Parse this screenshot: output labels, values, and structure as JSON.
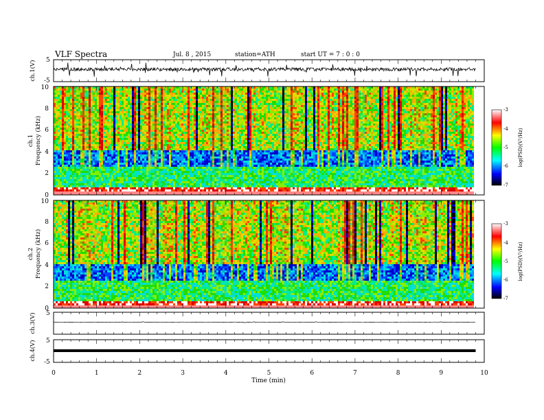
{
  "header": {
    "title": "VLF Spectra",
    "date": "Jul.  8  , 2015",
    "station": "station=ATH",
    "start": "start  UT  =   7  : 0  : 0"
  },
  "chart_data": [
    {
      "id": "ch1",
      "type": "line",
      "ylabel": "ch.1(V)",
      "ylim": [
        -5,
        5
      ],
      "yticks": [
        "5",
        "-5"
      ],
      "description_level": 0.8
    },
    {
      "id": "spec1",
      "type": "heatmap",
      "ylabel_top": "ch.1",
      "ylabel": "Frequency  (kHz)",
      "ylim": [
        0,
        10
      ],
      "yticks": [
        "0",
        "2",
        "4",
        "6",
        "8",
        "10"
      ],
      "colorbar": {
        "label": "log(PSD)(V²/Hz)",
        "range": [
          -7,
          -3
        ],
        "ticks": [
          "-3",
          "-4",
          "-5",
          "-6",
          "-7"
        ],
        "colors": [
          "#000000",
          "#0000ff",
          "#00ffff",
          "#00ff00",
          "#ffff00",
          "#ff0000",
          "#ffffff"
        ]
      }
    },
    {
      "id": "spec2",
      "type": "heatmap",
      "ylabel_top": "ch.2",
      "ylabel": "Frequency  (kHz)",
      "ylim": [
        0,
        10
      ],
      "yticks": [
        "0",
        "2",
        "4",
        "6",
        "8",
        "10"
      ],
      "colorbar": {
        "label": "log(PSD)(V²/Hz)",
        "range": [
          -7,
          -3
        ],
        "ticks": [
          "-3",
          "-4",
          "-5",
          "-6",
          "-7"
        ],
        "colors": [
          "#000000",
          "#0000ff",
          "#00ffff",
          "#00ff00",
          "#ffff00",
          "#ff0000",
          "#ffffff"
        ]
      }
    },
    {
      "id": "ch3",
      "type": "line",
      "ylabel": "ch.3(V)",
      "ylim": [
        -5,
        5
      ],
      "yticks": [
        "5",
        ""
      ],
      "level": 0
    },
    {
      "id": "ch4",
      "type": "line",
      "ylabel": "ch.4(V)",
      "ylim": [
        -5,
        5
      ],
      "yticks": [
        "5",
        "-5"
      ],
      "level": 0
    }
  ],
  "xaxis": {
    "label": "Time  (min)",
    "range": [
      0,
      10
    ],
    "ticks": [
      "0",
      "1",
      "2",
      "3",
      "4",
      "5",
      "6",
      "7",
      "8",
      "9",
      "10"
    ],
    "data_end": 9.8
  }
}
